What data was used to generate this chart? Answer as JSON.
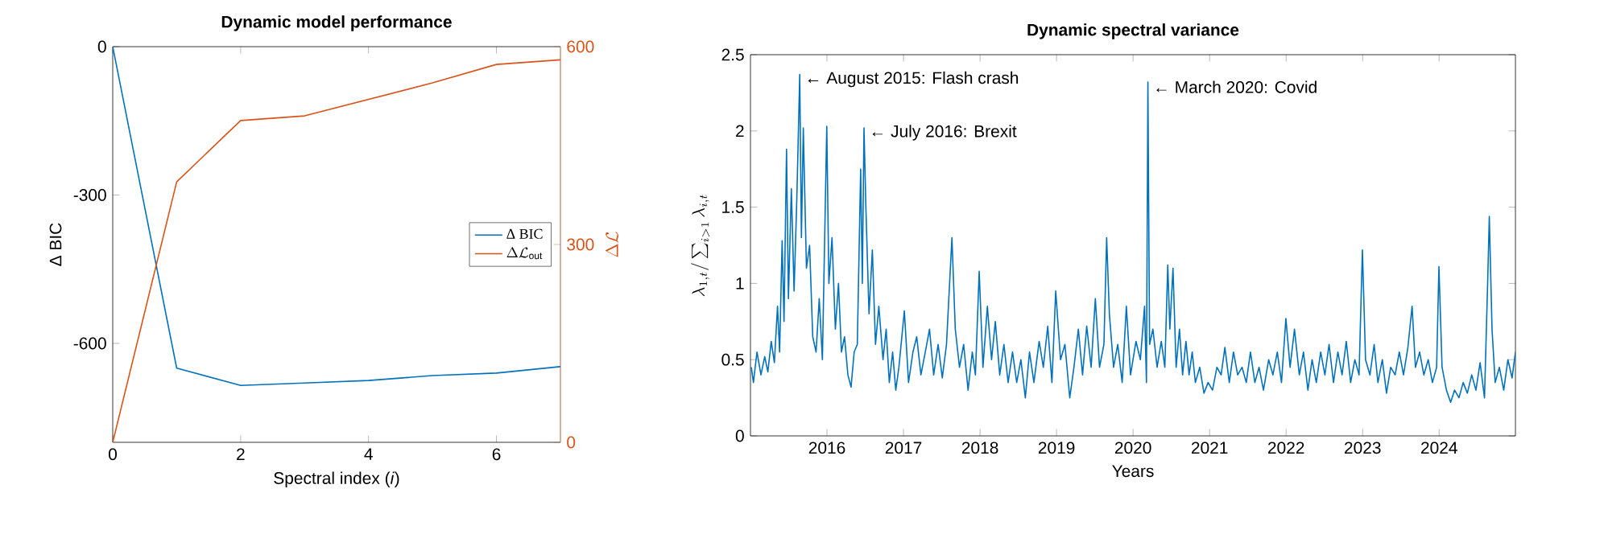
{
  "chart_data": [
    {
      "type": "line",
      "title": "Dynamic model performance",
      "xlabel": "Spectral index (*i*)",
      "ylabel": "Δ BIC",
      "y2label": "\\Delta\\mathcal{L}",
      "x": [
        0,
        1,
        2,
        3,
        4,
        5,
        6,
        7
      ],
      "xlim": [
        0,
        7
      ],
      "xticks": [
        0,
        2,
        4,
        6
      ],
      "ylim": [
        -800,
        0
      ],
      "yticks": [
        -600,
        -300,
        0
      ],
      "y2lim": [
        0,
        600
      ],
      "y2ticks": [
        0,
        300,
        600
      ],
      "legend": "right",
      "series": [
        {
          "name": "Δ BIC",
          "color": "#0072bd",
          "values": [
            0,
            -650,
            -685,
            -680,
            -675,
            -665,
            -660,
            -647
          ]
        },
        {
          "name": "\\Delta\\mathcal{L}_{\\mathrm{out}}",
          "color": "#d95319",
          "axis": "y2",
          "values": [
            0,
            395,
            488,
            495,
            520,
            545,
            573,
            580
          ]
        }
      ]
    },
    {
      "type": "line",
      "title": "Dynamic spectral variance",
      "xlabel": "Years",
      "ylabel": "\\lambda_{1,t}/\\sum_{i>1}\\lambda_{i,t}",
      "xlim": [
        "2015-01-01",
        "2024-12-31"
      ],
      "xticks": [
        "2016",
        "2017",
        "2018",
        "2019",
        "2020",
        "2021",
        "2022",
        "2023",
        "2024"
      ],
      "ylim": [
        0,
        2.5
      ],
      "yticks": [
        0,
        0.5,
        1,
        1.5,
        2,
        2.5
      ],
      "annotations": [
        {
          "text": "← August 2015: Flash crash",
          "x": "2015-08-24",
          "y": 2.37
        },
        {
          "text": "← July 2016: Brexit",
          "x": "2016-06-26",
          "y": 2.02
        },
        {
          "text": "← March 2020: Covid",
          "x": "2020-03-12",
          "y": 2.32
        }
      ],
      "series": [
        {
          "color": "#0072bd",
          "x": [
            "2015-01-05",
            "2015-01-15",
            "2015-02-01",
            "2015-02-20",
            "2015-03-10",
            "2015-03-25",
            "2015-04-10",
            "2015-04-25",
            "2015-05-10",
            "2015-05-20",
            "2015-06-01",
            "2015-06-10",
            "2015-06-22",
            "2015-07-01",
            "2015-07-15",
            "2015-07-28",
            "2015-08-10",
            "2015-08-24",
            "2015-09-01",
            "2015-09-10",
            "2015-09-25",
            "2015-10-10",
            "2015-10-25",
            "2015-11-10",
            "2015-11-25",
            "2015-12-10",
            "2015-12-31",
            "2016-01-10",
            "2016-01-25",
            "2016-02-10",
            "2016-02-25",
            "2016-03-10",
            "2016-03-25",
            "2016-04-10",
            "2016-04-25",
            "2016-05-10",
            "2016-05-25",
            "2016-06-10",
            "2016-06-18",
            "2016-06-26",
            "2016-07-05",
            "2016-07-20",
            "2016-08-05",
            "2016-08-20",
            "2016-09-05",
            "2016-09-25",
            "2016-10-10",
            "2016-10-25",
            "2016-11-10",
            "2016-11-25",
            "2016-12-10",
            "2017-01-05",
            "2017-01-25",
            "2017-02-15",
            "2017-03-05",
            "2017-03-25",
            "2017-04-15",
            "2017-05-05",
            "2017-05-25",
            "2017-06-15",
            "2017-07-05",
            "2017-07-25",
            "2017-08-20",
            "2017-09-05",
            "2017-09-25",
            "2017-10-15",
            "2017-11-05",
            "2017-11-25",
            "2017-12-10",
            "2017-12-28",
            "2018-01-15",
            "2018-02-05",
            "2018-02-25",
            "2018-03-15",
            "2018-04-05",
            "2018-04-25",
            "2018-05-15",
            "2018-06-05",
            "2018-06-25",
            "2018-07-15",
            "2018-08-05",
            "2018-08-25",
            "2018-09-15",
            "2018-10-10",
            "2018-10-30",
            "2018-11-20",
            "2018-12-10",
            "2018-12-28",
            "2019-01-20",
            "2019-02-10",
            "2019-03-05",
            "2019-03-25",
            "2019-04-15",
            "2019-05-05",
            "2019-05-25",
            "2019-06-15",
            "2019-07-05",
            "2019-07-25",
            "2019-08-15",
            "2019-08-28",
            "2019-09-10",
            "2019-09-30",
            "2019-10-20",
            "2019-11-10",
            "2019-11-30",
            "2019-12-20",
            "2020-01-15",
            "2020-02-05",
            "2020-02-25",
            "2020-03-05",
            "2020-03-12",
            "2020-03-20",
            "2020-04-05",
            "2020-04-25",
            "2020-05-15",
            "2020-06-01",
            "2020-06-15",
            "2020-06-25",
            "2020-07-10",
            "2020-07-25",
            "2020-08-10",
            "2020-08-25",
            "2020-09-10",
            "2020-09-25",
            "2020-10-10",
            "2020-10-25",
            "2020-11-15",
            "2020-12-05",
            "2020-12-25",
            "2021-01-15",
            "2021-02-05",
            "2021-02-25",
            "2021-03-15",
            "2021-04-05",
            "2021-04-25",
            "2021-05-15",
            "2021-06-05",
            "2021-06-25",
            "2021-07-15",
            "2021-08-05",
            "2021-08-25",
            "2021-09-15",
            "2021-10-10",
            "2021-10-30",
            "2021-11-20",
            "2021-12-10",
            "2021-12-31",
            "2022-01-20",
            "2022-02-10",
            "2022-03-05",
            "2022-03-25",
            "2022-04-15",
            "2022-05-05",
            "2022-05-25",
            "2022-06-15",
            "2022-07-05",
            "2022-07-25",
            "2022-08-15",
            "2022-09-05",
            "2022-09-25",
            "2022-10-15",
            "2022-11-05",
            "2022-11-25",
            "2022-12-15",
            "2022-12-31",
            "2023-01-15",
            "2023-02-05",
            "2023-02-25",
            "2023-03-15",
            "2023-04-05",
            "2023-04-25",
            "2023-05-15",
            "2023-06-05",
            "2023-06-25",
            "2023-07-15",
            "2023-08-05",
            "2023-08-25",
            "2023-09-10",
            "2023-09-30",
            "2023-10-20",
            "2023-11-10",
            "2023-11-30",
            "2023-12-20",
            "2023-12-31",
            "2024-01-15",
            "2024-02-05",
            "2024-02-25",
            "2024-03-15",
            "2024-04-05",
            "2024-04-25",
            "2024-05-15",
            "2024-06-05",
            "2024-06-25",
            "2024-07-15",
            "2024-08-05",
            "2024-08-20",
            "2024-08-28",
            "2024-09-10",
            "2024-09-25",
            "2024-10-15",
            "2024-11-05",
            "2024-11-25",
            "2024-12-15",
            "2024-12-31"
          ],
          "values": [
            0.45,
            0.35,
            0.55,
            0.4,
            0.52,
            0.42,
            0.62,
            0.48,
            0.85,
            0.55,
            1.28,
            0.75,
            1.88,
            0.9,
            1.62,
            0.95,
            1.55,
            2.37,
            1.3,
            2.02,
            1.1,
            1.25,
            0.65,
            0.55,
            0.9,
            0.5,
            2.03,
            1.0,
            1.3,
            0.7,
            1.0,
            0.55,
            0.65,
            0.4,
            0.32,
            0.55,
            0.6,
            1.75,
            1.0,
            2.02,
            1.5,
            0.8,
            1.22,
            0.6,
            0.85,
            0.5,
            0.7,
            0.35,
            0.55,
            0.3,
            0.45,
            0.82,
            0.35,
            0.55,
            0.65,
            0.4,
            0.55,
            0.7,
            0.4,
            0.6,
            0.38,
            0.6,
            1.3,
            0.7,
            0.45,
            0.6,
            0.3,
            0.55,
            0.4,
            1.08,
            0.45,
            0.85,
            0.5,
            0.75,
            0.4,
            0.6,
            0.35,
            0.55,
            0.35,
            0.5,
            0.25,
            0.55,
            0.35,
            0.62,
            0.45,
            0.72,
            0.35,
            0.95,
            0.5,
            0.6,
            0.25,
            0.45,
            0.7,
            0.4,
            0.72,
            0.45,
            0.9,
            0.45,
            0.6,
            1.3,
            0.8,
            0.45,
            0.6,
            0.35,
            0.85,
            0.4,
            0.62,
            0.5,
            0.85,
            0.35,
            2.32,
            0.6,
            0.7,
            0.45,
            0.62,
            0.45,
            1.12,
            0.7,
            1.1,
            0.45,
            0.7,
            0.4,
            0.62,
            0.4,
            0.55,
            0.35,
            0.45,
            0.28,
            0.35,
            0.3,
            0.45,
            0.4,
            0.58,
            0.35,
            0.55,
            0.4,
            0.45,
            0.35,
            0.55,
            0.35,
            0.45,
            0.3,
            0.5,
            0.4,
            0.55,
            0.35,
            0.77,
            0.45,
            0.7,
            0.4,
            0.55,
            0.3,
            0.5,
            0.35,
            0.55,
            0.4,
            0.6,
            0.35,
            0.55,
            0.4,
            0.62,
            0.35,
            0.5,
            0.4,
            1.22,
            0.5,
            0.4,
            0.6,
            0.35,
            0.5,
            0.28,
            0.45,
            0.4,
            0.55,
            0.4,
            0.58,
            0.85,
            0.45,
            0.55,
            0.4,
            0.5,
            0.35,
            0.45,
            1.11,
            0.45,
            0.3,
            0.22,
            0.3,
            0.25,
            0.35,
            0.28,
            0.4,
            0.3,
            0.48,
            0.25,
            1.0,
            1.44,
            0.7,
            0.35,
            0.45,
            0.3,
            0.5,
            0.38,
            0.55
          ]
        }
      ]
    }
  ]
}
